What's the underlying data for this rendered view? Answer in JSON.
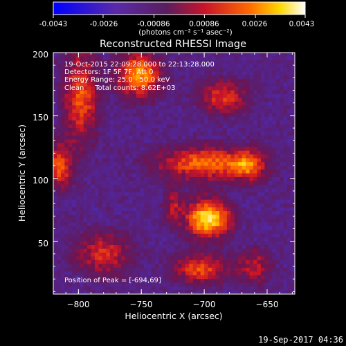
{
  "colorbar": {
    "min": -0.0043,
    "max": 0.0043,
    "ticks": [
      "-0.0043",
      "-0.0026",
      "-0.00086",
      "0.00086",
      "0.0026",
      "0.0043"
    ],
    "unit_label": "(photons cm⁻² s⁻¹ asec⁻²)"
  },
  "chart_data": {
    "type": "heatmap",
    "title": "Reconstructed RHESSI Image",
    "xlabel": "Heliocentric X (arcsec)",
    "ylabel": "Heliocentric Y (arcsec)",
    "xlim": [
      -820,
      -628
    ],
    "ylim": [
      8,
      200
    ],
    "xticks": [
      -800,
      -750,
      -700,
      -650
    ],
    "yticks": [
      50,
      100,
      150,
      200
    ],
    "xtick_labels": [
      "−800",
      "−750",
      "−700",
      "−650"
    ],
    "ytick_labels": [
      "50",
      "100",
      "150",
      "200"
    ],
    "grid": false,
    "colormap": "blue-purple-red-yellow-white",
    "peak": {
      "x": -694,
      "y": 69
    },
    "sources": [
      {
        "x": -697,
        "y": 68,
        "sx": 12,
        "sy": 10,
        "amp": 1.0
      },
      {
        "x": -700,
        "y": 112,
        "sx": 26,
        "sy": 9,
        "amp": 0.65
      },
      {
        "x": -665,
        "y": 110,
        "sx": 9,
        "sy": 8,
        "amp": 0.55
      },
      {
        "x": -752,
        "y": 182,
        "sx": 12,
        "sy": 12,
        "amp": 0.75
      },
      {
        "x": -798,
        "y": 165,
        "sx": 9,
        "sy": 25,
        "amp": 0.6
      },
      {
        "x": -685,
        "y": 165,
        "sx": 13,
        "sy": 9,
        "amp": 0.5
      },
      {
        "x": -815,
        "y": 110,
        "sx": 7,
        "sy": 12,
        "amp": 0.6
      },
      {
        "x": -780,
        "y": 40,
        "sx": 15,
        "sy": 12,
        "amp": 0.45
      },
      {
        "x": -703,
        "y": 28,
        "sx": 15,
        "sy": 8,
        "amp": 0.55
      },
      {
        "x": -660,
        "y": 30,
        "sx": 9,
        "sy": 9,
        "amp": 0.4
      },
      {
        "x": -725,
        "y": 78,
        "sx": 5,
        "sy": 10,
        "amp": 0.35
      }
    ]
  },
  "annotations": {
    "time_range": "19-Oct-2015 22:09:28.000 to 22:13:28.000",
    "detectors": "Detectors: 1F 5F 7F, Att 0",
    "energy_range": "Energy Range: 25.0 - 50.0 keV",
    "clean": "Clean     Total counts: 8.62E+03",
    "peak_position": "Position of Peak = [-694,69]"
  },
  "footer": {
    "timestamp": "19-Sep-2017 04:36"
  }
}
